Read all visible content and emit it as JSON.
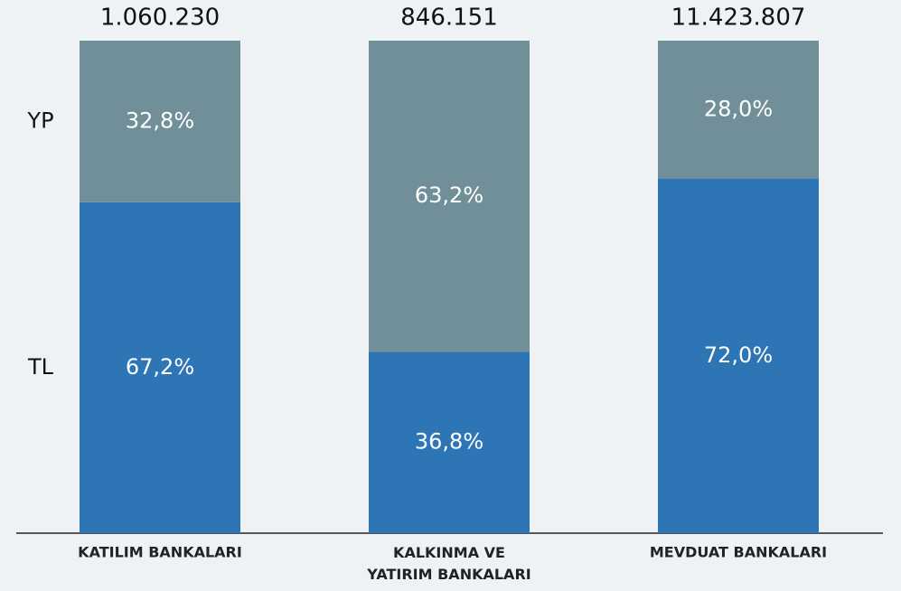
{
  "chart_data": {
    "type": "stacked_bar",
    "categories": [
      "KATILIM BANKALARI",
      "KALKINMA VE\nYATIRIM BANKALARI",
      "MEVDUAT BANKALARI"
    ],
    "series": [
      {
        "name": "TL",
        "color": "#2e75b6",
        "values": [
          67.2,
          36.8,
          72.0
        ],
        "value_labels": [
          "67,2%",
          "36,8%",
          "72,0%"
        ]
      },
      {
        "name": "YP",
        "color": "#718f98",
        "values": [
          32.8,
          63.2,
          28.0
        ],
        "value_labels": [
          "32,8%",
          "63,2%",
          "28,0%"
        ]
      }
    ],
    "totals": {
      "values": [
        1060230,
        846151,
        11423807
      ],
      "value_labels": [
        "1.060.230",
        "846.151",
        "11.423.807"
      ]
    },
    "ylim": [
      0,
      100
    ]
  }
}
